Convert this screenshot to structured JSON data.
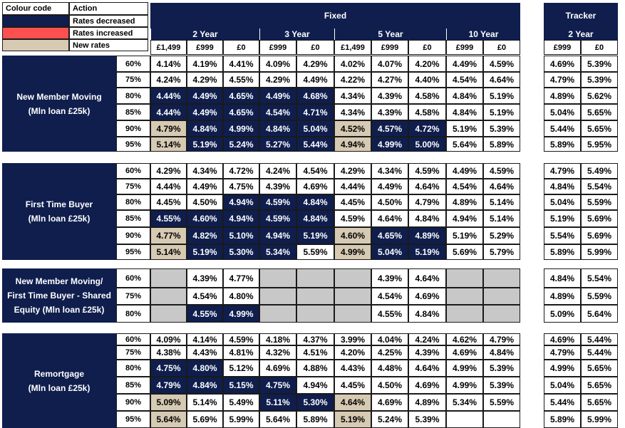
{
  "colors": {
    "navy": "#0f1e4d",
    "beige": "#d7cab3",
    "grey": "#c8c8c8",
    "red": "#ff5050",
    "white": "#ffffff"
  },
  "legend": {
    "header_code": "Colour code",
    "header_action": "Action",
    "rows": [
      {
        "color": "navy",
        "label": "Rates decreased"
      },
      {
        "color": "red",
        "label": "Rates increased"
      },
      {
        "color": "beige",
        "label": "New rates"
      }
    ]
  },
  "headers": {
    "fixed": "Fixed",
    "tracker": "Tracker",
    "groups": [
      "2 Year",
      "3 Year",
      "5 Year",
      "10 Year"
    ],
    "tracker_group": "2 Year",
    "fees": [
      "£1,499",
      "£999",
      "£0",
      "£999",
      "£0",
      "£1,499",
      "£999",
      "£0",
      "£999",
      "£0"
    ],
    "tracker_fees": [
      "£999",
      "£0"
    ]
  },
  "sections": [
    {
      "label": "New Member Moving (Mln loan £25k)",
      "label_lines": [
        "New Member Moving",
        "(Mln loan £25k)"
      ],
      "rows": [
        {
          "ltv": "60%",
          "rates": [
            "4.14%",
            "4.19%",
            "4.41%",
            "4.09%",
            "4.29%",
            "4.02%",
            "4.07%",
            "4.20%",
            "4.49%",
            "4.59%"
          ],
          "styles": [
            "w",
            "w",
            "w",
            "w",
            "w",
            "w",
            "w",
            "w",
            "w",
            "w"
          ],
          "tracker": [
            "4.69%",
            "5.39%"
          ]
        },
        {
          "ltv": "75%",
          "rates": [
            "4.24%",
            "4.29%",
            "4.55%",
            "4.29%",
            "4.49%",
            "4.22%",
            "4.27%",
            "4.40%",
            "4.54%",
            "4.64%"
          ],
          "styles": [
            "w",
            "w",
            "w",
            "w",
            "w",
            "w",
            "w",
            "w",
            "w",
            "w"
          ],
          "tracker": [
            "4.79%",
            "5.39%"
          ]
        },
        {
          "ltv": "80%",
          "rates": [
            "4.44%",
            "4.49%",
            "4.65%",
            "4.49%",
            "4.68%",
            "4.34%",
            "4.39%",
            "4.58%",
            "4.84%",
            "5.19%"
          ],
          "styles": [
            "n",
            "n",
            "n",
            "n",
            "n",
            "w",
            "w",
            "w",
            "w",
            "w"
          ],
          "tracker": [
            "4.89%",
            "5.62%"
          ]
        },
        {
          "ltv": "85%",
          "rates": [
            "4.44%",
            "4.49%",
            "4.65%",
            "4.54%",
            "4.71%",
            "4.34%",
            "4.39%",
            "4.58%",
            "4.84%",
            "5.19%"
          ],
          "styles": [
            "n",
            "n",
            "n",
            "n",
            "n",
            "w",
            "w",
            "w",
            "w",
            "w"
          ],
          "tracker": [
            "5.04%",
            "5.65%"
          ]
        },
        {
          "ltv": "90%",
          "rates": [
            "4.79%",
            "4.84%",
            "4.99%",
            "4.84%",
            "5.04%",
            "4.52%",
            "4.57%",
            "4.72%",
            "5.19%",
            "5.39%"
          ],
          "styles": [
            "b",
            "n",
            "n",
            "n",
            "n",
            "b",
            "n",
            "n",
            "w",
            "w"
          ],
          "tracker": [
            "5.44%",
            "5.65%"
          ]
        },
        {
          "ltv": "95%",
          "rates": [
            "5.14%",
            "5.19%",
            "5.24%",
            "5.27%",
            "5.44%",
            "4.94%",
            "4.99%",
            "5.00%",
            "5.64%",
            "5.89%"
          ],
          "styles": [
            "b",
            "n",
            "n",
            "n",
            "n",
            "b",
            "n",
            "n",
            "w",
            "w"
          ],
          "tracker": [
            "5.89%",
            "5.95%"
          ]
        }
      ]
    },
    {
      "label": "First Time Buyer (Mln loan £25k)",
      "label_lines": [
        "First Time Buyer",
        "(Mln loan £25k)"
      ],
      "rows": [
        {
          "ltv": "60%",
          "rates": [
            "4.29%",
            "4.34%",
            "4.72%",
            "4.24%",
            "4.54%",
            "4.29%",
            "4.34%",
            "4.59%",
            "4.49%",
            "4.59%"
          ],
          "styles": [
            "w",
            "w",
            "w",
            "w",
            "w",
            "w",
            "w",
            "w",
            "w",
            "w"
          ],
          "tracker": [
            "4.79%",
            "5.49%"
          ]
        },
        {
          "ltv": "75%",
          "rates": [
            "4.44%",
            "4.49%",
            "4.75%",
            "4.39%",
            "4.69%",
            "4.44%",
            "4.49%",
            "4.64%",
            "4.54%",
            "4.64%"
          ],
          "styles": [
            "w",
            "w",
            "w",
            "w",
            "w",
            "w",
            "w",
            "w",
            "w",
            "w"
          ],
          "tracker": [
            "4.84%",
            "5.54%"
          ]
        },
        {
          "ltv": "80%",
          "rates": [
            "4.45%",
            "4.50%",
            "4.94%",
            "4.59%",
            "4.84%",
            "4.45%",
            "4.50%",
            "4.79%",
            "4.89%",
            "5.14%"
          ],
          "styles": [
            "w",
            "w",
            "n",
            "n",
            "n",
            "w",
            "w",
            "w",
            "w",
            "w"
          ],
          "tracker": [
            "5.04%",
            "5.59%"
          ]
        },
        {
          "ltv": "85%",
          "rates": [
            "4.55%",
            "4.60%",
            "4.94%",
            "4.59%",
            "4.84%",
            "4.59%",
            "4.64%",
            "4.84%",
            "4.94%",
            "5.14%"
          ],
          "styles": [
            "n",
            "n",
            "n",
            "n",
            "n",
            "w",
            "w",
            "w",
            "w",
            "w"
          ],
          "tracker": [
            "5.19%",
            "5.69%"
          ]
        },
        {
          "ltv": "90%",
          "rates": [
            "4.77%",
            "4.82%",
            "5.10%",
            "4.94%",
            "5.19%",
            "4.60%",
            "4.65%",
            "4.89%",
            "5.19%",
            "5.29%"
          ],
          "styles": [
            "b",
            "n",
            "n",
            "n",
            "n",
            "b",
            "n",
            "n",
            "w",
            "w"
          ],
          "tracker": [
            "5.54%",
            "5.69%"
          ]
        },
        {
          "ltv": "95%",
          "rates": [
            "5.14%",
            "5.19%",
            "5.30%",
            "5.34%",
            "5.59%",
            "4.99%",
            "5.04%",
            "5.19%",
            "5.69%",
            "5.79%"
          ],
          "styles": [
            "b",
            "n",
            "n",
            "n",
            "w",
            "b",
            "n",
            "n",
            "w",
            "w"
          ],
          "tracker": [
            "5.89%",
            "5.99%"
          ]
        }
      ]
    },
    {
      "label": "New Member Moving/ First Time Buyer - Shared Equity (Mln loan £25k)",
      "label_lines": [
        "New Member Moving/",
        "First Time Buyer - Shared",
        "Equity (Mln loan £25k)"
      ],
      "rows": [
        {
          "ltv": "60%",
          "rates": [
            "",
            "4.39%",
            "4.77%",
            "",
            "",
            "",
            "4.39%",
            "4.64%",
            "",
            ""
          ],
          "styles": [
            "g",
            "w",
            "w",
            "g",
            "g",
            "g",
            "w",
            "w",
            "g",
            "g"
          ],
          "tracker": [
            "4.84%",
            "5.54%"
          ]
        },
        {
          "ltv": "75%",
          "rates": [
            "",
            "4.54%",
            "4.80%",
            "",
            "",
            "",
            "4.54%",
            "4.69%",
            "",
            ""
          ],
          "styles": [
            "g",
            "w",
            "w",
            "g",
            "g",
            "g",
            "w",
            "w",
            "g",
            "g"
          ],
          "tracker": [
            "4.89%",
            "5.59%"
          ]
        },
        {
          "ltv": "80%",
          "rates": [
            "",
            "4.55%",
            "4.99%",
            "",
            "",
            "",
            "4.55%",
            "4.84%",
            "",
            ""
          ],
          "styles": [
            "g",
            "n",
            "n",
            "g",
            "g",
            "g",
            "w",
            "w",
            "g",
            "g"
          ],
          "tracker": [
            "5.09%",
            "5.64%"
          ]
        }
      ]
    },
    {
      "label": "Remortgage (Mln loan £25k)",
      "label_lines": [
        "Remortgage",
        "(Mln loan £25k)"
      ],
      "rows": [
        {
          "ltv": "60%",
          "rates": [
            "4.09%",
            "4.14%",
            "4.59%",
            "4.18%",
            "4.37%",
            "3.99%",
            "4.04%",
            "4.24%",
            "4.62%",
            "4.79%"
          ],
          "styles": [
            "w",
            "w",
            "w",
            "w",
            "w",
            "w",
            "w",
            "w",
            "w",
            "w"
          ],
          "tracker": [
            "4.69%",
            "5.44%"
          ]
        },
        {
          "ltv": "75%",
          "rates": [
            "4.38%",
            "4.43%",
            "4.81%",
            "4.32%",
            "4.51%",
            "4.20%",
            "4.25%",
            "4.39%",
            "4.69%",
            "4.84%"
          ],
          "styles": [
            "w",
            "w",
            "w",
            "w",
            "w",
            "w",
            "w",
            "w",
            "w",
            "w"
          ],
          "tracker": [
            "4.79%",
            "5.44%"
          ]
        },
        {
          "ltv": "80%",
          "rates": [
            "4.75%",
            "4.80%",
            "5.12%",
            "4.69%",
            "4.88%",
            "4.43%",
            "4.48%",
            "4.64%",
            "4.99%",
            "5.39%"
          ],
          "styles": [
            "n",
            "n",
            "w",
            "w",
            "w",
            "w",
            "w",
            "w",
            "w",
            "w"
          ],
          "tracker": [
            "4.99%",
            "5.65%"
          ]
        },
        {
          "ltv": "85%",
          "rates": [
            "4.79%",
            "4.84%",
            "5.15%",
            "4.75%",
            "4.94%",
            "4.45%",
            "4.50%",
            "4.69%",
            "4.99%",
            "5.39%"
          ],
          "styles": [
            "n",
            "n",
            "n",
            "n",
            "w",
            "w",
            "w",
            "w",
            "w",
            "w"
          ],
          "tracker": [
            "5.04%",
            "5.65%"
          ]
        },
        {
          "ltv": "90%",
          "rates": [
            "5.09%",
            "5.14%",
            "5.49%",
            "5.11%",
            "5.30%",
            "4.64%",
            "4.69%",
            "4.89%",
            "5.34%",
            "5.59%"
          ],
          "styles": [
            "b",
            "w",
            "w",
            "n",
            "n",
            "b",
            "w",
            "w",
            "w",
            "w"
          ],
          "tracker": [
            "5.44%",
            "5.65%"
          ]
        },
        {
          "ltv": "95%",
          "rates": [
            "5.64%",
            "5.69%",
            "5.99%",
            "5.64%",
            "5.89%",
            "5.19%",
            "5.24%",
            "5.39%",
            "",
            ""
          ],
          "styles": [
            "b",
            "w",
            "w",
            "w",
            "w",
            "b",
            "w",
            "w",
            "w",
            "w"
          ],
          "tracker": [
            "5.89%",
            "5.99%"
          ]
        }
      ]
    }
  ]
}
